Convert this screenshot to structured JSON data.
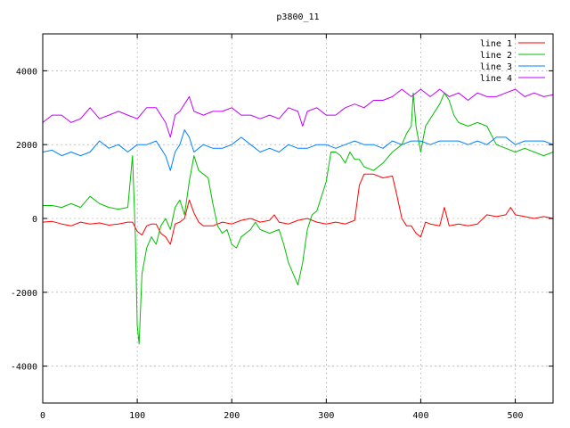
{
  "chart_data": {
    "type": "line",
    "title": "p3800_11",
    "xlabel": "",
    "ylabel": "",
    "xlim": [
      0,
      540
    ],
    "ylim": [
      -5000,
      5000
    ],
    "grid": true,
    "legend_position": "top-right",
    "x_ticks": [
      0,
      100,
      200,
      300,
      400,
      500
    ],
    "y_ticks": [
      -4000,
      -2000,
      0,
      2000,
      4000
    ],
    "series": [
      {
        "name": "line 1",
        "color": "#ff0000",
        "points": [
          [
            0,
            -100
          ],
          [
            10,
            -80
          ],
          [
            20,
            -150
          ],
          [
            30,
            -200
          ],
          [
            40,
            -100
          ],
          [
            50,
            -150
          ],
          [
            60,
            -120
          ],
          [
            70,
            -180
          ],
          [
            80,
            -150
          ],
          [
            90,
            -100
          ],
          [
            95,
            -100
          ],
          [
            100,
            -350
          ],
          [
            105,
            -450
          ],
          [
            110,
            -200
          ],
          [
            115,
            -150
          ],
          [
            120,
            -150
          ],
          [
            125,
            -400
          ],
          [
            130,
            -500
          ],
          [
            135,
            -700
          ],
          [
            140,
            -150
          ],
          [
            145,
            -100
          ],
          [
            150,
            0
          ],
          [
            155,
            500
          ],
          [
            160,
            150
          ],
          [
            165,
            -100
          ],
          [
            170,
            -200
          ],
          [
            180,
            -200
          ],
          [
            190,
            -100
          ],
          [
            200,
            -150
          ],
          [
            210,
            -50
          ],
          [
            220,
            0
          ],
          [
            230,
            -100
          ],
          [
            240,
            -50
          ],
          [
            245,
            100
          ],
          [
            250,
            -100
          ],
          [
            260,
            -150
          ],
          [
            270,
            -50
          ],
          [
            280,
            0
          ],
          [
            290,
            -100
          ],
          [
            300,
            -150
          ],
          [
            310,
            -100
          ],
          [
            320,
            -150
          ],
          [
            330,
            -50
          ],
          [
            335,
            900
          ],
          [
            340,
            1200
          ],
          [
            350,
            1200
          ],
          [
            360,
            1100
          ],
          [
            370,
            1150
          ],
          [
            375,
            600
          ],
          [
            380,
            0
          ],
          [
            385,
            -200
          ],
          [
            390,
            -200
          ],
          [
            395,
            -400
          ],
          [
            400,
            -500
          ],
          [
            405,
            -100
          ],
          [
            410,
            -150
          ],
          [
            420,
            -200
          ],
          [
            425,
            300
          ],
          [
            430,
            -200
          ],
          [
            440,
            -150
          ],
          [
            450,
            -200
          ],
          [
            460,
            -150
          ],
          [
            470,
            100
          ],
          [
            480,
            50
          ],
          [
            490,
            100
          ],
          [
            495,
            300
          ],
          [
            500,
            100
          ],
          [
            510,
            50
          ],
          [
            520,
            0
          ],
          [
            530,
            50
          ],
          [
            540,
            0
          ]
        ]
      },
      {
        "name": "line 2",
        "color": "#00c000",
        "points": [
          [
            0,
            350
          ],
          [
            10,
            350
          ],
          [
            20,
            300
          ],
          [
            30,
            400
          ],
          [
            40,
            300
          ],
          [
            50,
            600
          ],
          [
            60,
            400
          ],
          [
            70,
            300
          ],
          [
            80,
            250
          ],
          [
            90,
            300
          ],
          [
            95,
            1700
          ],
          [
            98,
            -500
          ],
          [
            100,
            -2900
          ],
          [
            102,
            -3400
          ],
          [
            105,
            -1500
          ],
          [
            110,
            -800
          ],
          [
            115,
            -500
          ],
          [
            120,
            -700
          ],
          [
            125,
            -200
          ],
          [
            130,
            0
          ],
          [
            135,
            -300
          ],
          [
            140,
            300
          ],
          [
            145,
            500
          ],
          [
            150,
            100
          ],
          [
            155,
            1000
          ],
          [
            160,
            1700
          ],
          [
            165,
            1300
          ],
          [
            170,
            1200
          ],
          [
            175,
            1100
          ],
          [
            180,
            400
          ],
          [
            185,
            -200
          ],
          [
            190,
            -400
          ],
          [
            195,
            -300
          ],
          [
            200,
            -700
          ],
          [
            205,
            -800
          ],
          [
            210,
            -500
          ],
          [
            220,
            -300
          ],
          [
            225,
            -100
          ],
          [
            230,
            -300
          ],
          [
            240,
            -400
          ],
          [
            250,
            -300
          ],
          [
            255,
            -700
          ],
          [
            260,
            -1200
          ],
          [
            265,
            -1500
          ],
          [
            270,
            -1800
          ],
          [
            275,
            -1200
          ],
          [
            280,
            -300
          ],
          [
            285,
            100
          ],
          [
            290,
            200
          ],
          [
            295,
            600
          ],
          [
            300,
            1000
          ],
          [
            305,
            1800
          ],
          [
            310,
            1800
          ],
          [
            315,
            1700
          ],
          [
            320,
            1500
          ],
          [
            325,
            1800
          ],
          [
            330,
            1600
          ],
          [
            335,
            1600
          ],
          [
            340,
            1400
          ],
          [
            350,
            1300
          ],
          [
            360,
            1500
          ],
          [
            370,
            1800
          ],
          [
            380,
            2000
          ],
          [
            385,
            2300
          ],
          [
            390,
            2500
          ],
          [
            392,
            3400
          ],
          [
            395,
            2500
          ],
          [
            400,
            1800
          ],
          [
            405,
            2500
          ],
          [
            410,
            2700
          ],
          [
            415,
            2900
          ],
          [
            420,
            3100
          ],
          [
            425,
            3400
          ],
          [
            430,
            3200
          ],
          [
            435,
            2800
          ],
          [
            440,
            2600
          ],
          [
            450,
            2500
          ],
          [
            460,
            2600
          ],
          [
            470,
            2500
          ],
          [
            480,
            2000
          ],
          [
            490,
            1900
          ],
          [
            500,
            1800
          ],
          [
            510,
            1900
          ],
          [
            520,
            1800
          ],
          [
            530,
            1700
          ],
          [
            540,
            1800
          ]
        ]
      },
      {
        "name": "line 3",
        "color": "#0080ff",
        "points": [
          [
            0,
            1800
          ],
          [
            10,
            1850
          ],
          [
            20,
            1700
          ],
          [
            30,
            1800
          ],
          [
            40,
            1700
          ],
          [
            50,
            1800
          ],
          [
            60,
            2100
          ],
          [
            70,
            1900
          ],
          [
            80,
            2000
          ],
          [
            90,
            1800
          ],
          [
            95,
            1900
          ],
          [
            100,
            2000
          ],
          [
            110,
            2000
          ],
          [
            120,
            2100
          ],
          [
            125,
            1900
          ],
          [
            130,
            1700
          ],
          [
            135,
            1300
          ],
          [
            140,
            1800
          ],
          [
            145,
            2000
          ],
          [
            150,
            2400
          ],
          [
            155,
            2200
          ],
          [
            160,
            1800
          ],
          [
            165,
            1900
          ],
          [
            170,
            2000
          ],
          [
            180,
            1900
          ],
          [
            190,
            1900
          ],
          [
            200,
            2000
          ],
          [
            210,
            2200
          ],
          [
            220,
            2000
          ],
          [
            230,
            1800
          ],
          [
            240,
            1900
          ],
          [
            250,
            1800
          ],
          [
            260,
            2000
          ],
          [
            270,
            1900
          ],
          [
            280,
            1900
          ],
          [
            290,
            2000
          ],
          [
            300,
            2000
          ],
          [
            310,
            1900
          ],
          [
            320,
            2000
          ],
          [
            330,
            2100
          ],
          [
            340,
            2000
          ],
          [
            350,
            2000
          ],
          [
            360,
            1900
          ],
          [
            370,
            2100
          ],
          [
            380,
            2000
          ],
          [
            390,
            2100
          ],
          [
            400,
            2100
          ],
          [
            410,
            2000
          ],
          [
            420,
            2100
          ],
          [
            430,
            2100
          ],
          [
            440,
            2100
          ],
          [
            450,
            2000
          ],
          [
            460,
            2100
          ],
          [
            470,
            2000
          ],
          [
            480,
            2200
          ],
          [
            490,
            2200
          ],
          [
            500,
            2000
          ],
          [
            510,
            2100
          ],
          [
            520,
            2100
          ],
          [
            530,
            2100
          ],
          [
            540,
            2000
          ]
        ]
      },
      {
        "name": "line 4",
        "color": "#c000ff",
        "points": [
          [
            0,
            2600
          ],
          [
            10,
            2800
          ],
          [
            20,
            2800
          ],
          [
            30,
            2600
          ],
          [
            40,
            2700
          ],
          [
            50,
            3000
          ],
          [
            60,
            2700
          ],
          [
            70,
            2800
          ],
          [
            80,
            2900
          ],
          [
            90,
            2800
          ],
          [
            100,
            2700
          ],
          [
            110,
            3000
          ],
          [
            120,
            3000
          ],
          [
            125,
            2800
          ],
          [
            130,
            2600
          ],
          [
            135,
            2200
          ],
          [
            140,
            2800
          ],
          [
            145,
            2900
          ],
          [
            150,
            3100
          ],
          [
            155,
            3300
          ],
          [
            160,
            2900
          ],
          [
            170,
            2800
          ],
          [
            180,
            2900
          ],
          [
            190,
            2900
          ],
          [
            200,
            3000
          ],
          [
            210,
            2800
          ],
          [
            220,
            2800
          ],
          [
            230,
            2700
          ],
          [
            240,
            2800
          ],
          [
            250,
            2700
          ],
          [
            260,
            3000
          ],
          [
            270,
            2900
          ],
          [
            275,
            2500
          ],
          [
            280,
            2900
          ],
          [
            290,
            3000
          ],
          [
            300,
            2800
          ],
          [
            310,
            2800
          ],
          [
            320,
            3000
          ],
          [
            330,
            3100
          ],
          [
            340,
            3000
          ],
          [
            350,
            3200
          ],
          [
            360,
            3200
          ],
          [
            370,
            3300
          ],
          [
            380,
            3500
          ],
          [
            390,
            3300
          ],
          [
            400,
            3500
          ],
          [
            410,
            3300
          ],
          [
            420,
            3500
          ],
          [
            430,
            3300
          ],
          [
            440,
            3400
          ],
          [
            450,
            3200
          ],
          [
            460,
            3400
          ],
          [
            470,
            3300
          ],
          [
            480,
            3300
          ],
          [
            490,
            3400
          ],
          [
            500,
            3500
          ],
          [
            510,
            3300
          ],
          [
            520,
            3400
          ],
          [
            530,
            3300
          ],
          [
            540,
            3350
          ]
        ]
      }
    ]
  }
}
